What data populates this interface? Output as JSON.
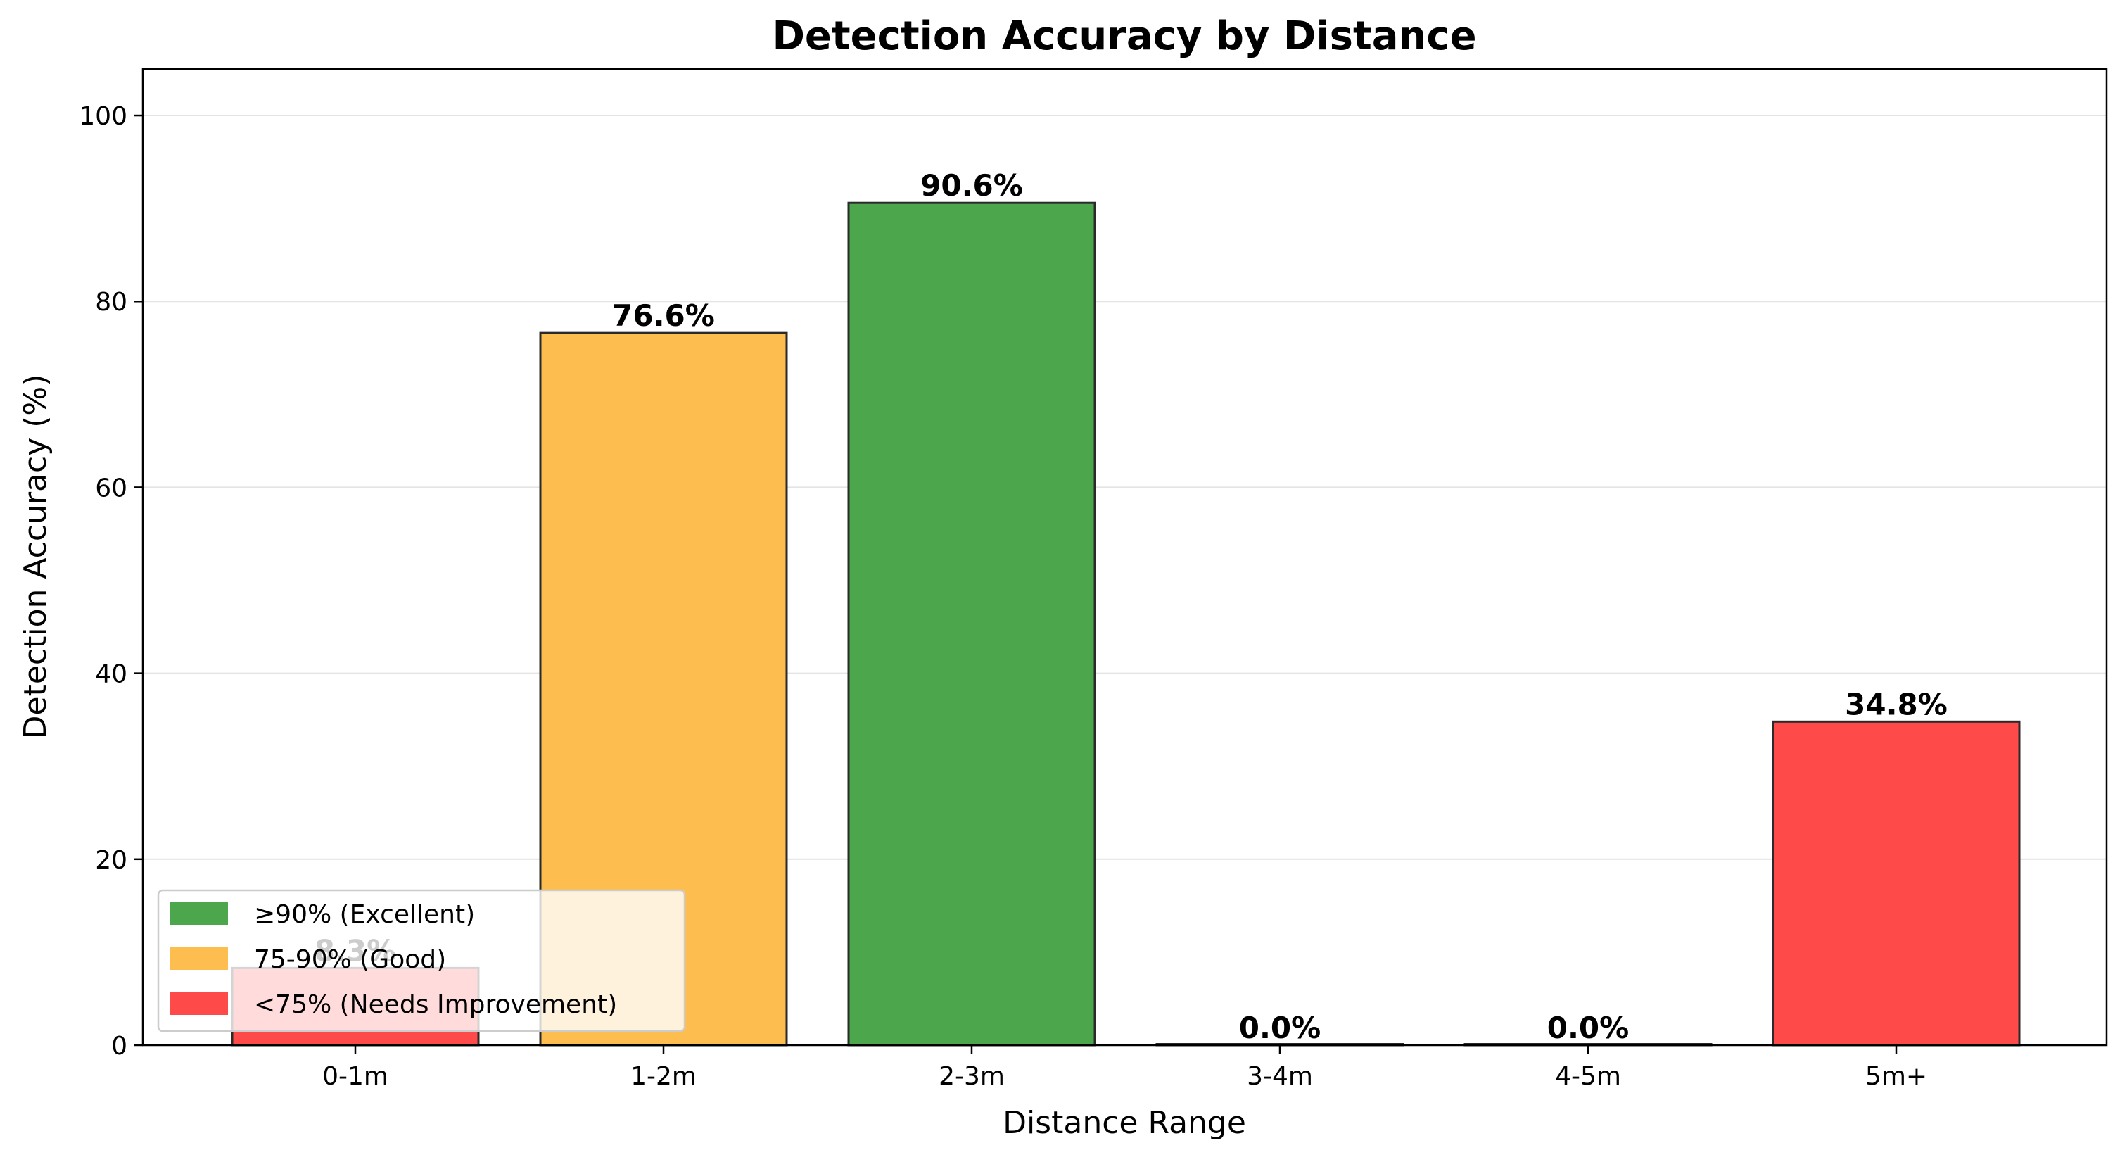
{
  "chart_data": {
    "type": "bar",
    "title": "Detection Accuracy by Distance",
    "xlabel": "Distance Range",
    "ylabel": "Detection Accuracy (%)",
    "categories": [
      "0-1m",
      "1-2m",
      "2-3m",
      "3-4m",
      "4-5m",
      "5m+"
    ],
    "values": [
      8.3,
      76.6,
      90.6,
      0.0,
      0.0,
      34.8
    ],
    "value_labels": [
      "8.3%",
      "76.6%",
      "90.6%",
      "0.0%",
      "0.0%",
      "34.8%"
    ],
    "bar_colors": [
      "#ff4a4a",
      "#fdbe4f",
      "#4ca64c",
      "#ff4a4a",
      "#ff4a4a",
      "#ff4a4a"
    ],
    "ylim": [
      0,
      105
    ],
    "yticks": [
      0,
      20,
      40,
      60,
      80,
      100
    ],
    "grid": "y",
    "legend_position": "lower-left",
    "legend": [
      {
        "label": "≥90% (Excellent)",
        "color": "#4ca64c"
      },
      {
        "label": "75-90% (Good)",
        "color": "#fdbe4f"
      },
      {
        "label": "<75% (Needs Improvement)",
        "color": "#ff4a4a"
      }
    ]
  }
}
